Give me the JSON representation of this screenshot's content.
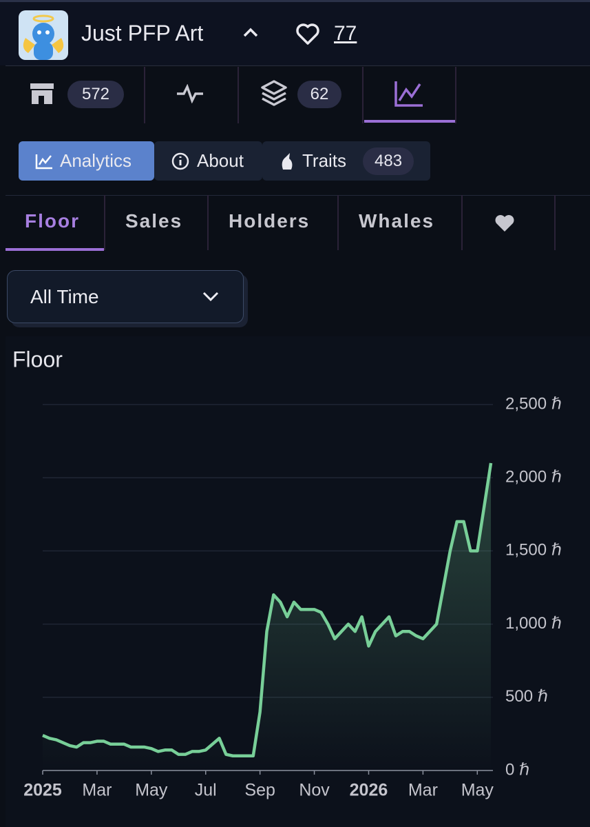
{
  "header": {
    "title": "Just PFP Art",
    "likes": 77
  },
  "nav": {
    "listings": 572,
    "collections": 62
  },
  "buttons": {
    "analytics": "Analytics",
    "about": "About",
    "traits": "Traits",
    "traits_count": 483
  },
  "subtabs": [
    "Floor",
    "Sales",
    "Holders",
    "Whales"
  ],
  "dropdown": "All Time",
  "chart_data": {
    "type": "line",
    "title": "Floor",
    "categories": [
      "2025",
      null,
      null,
      null,
      null,
      null,
      null,
      null,
      "Mar",
      null,
      null,
      null,
      null,
      null,
      null,
      null,
      "May",
      null,
      null,
      null,
      null,
      null,
      null,
      null,
      "Jul",
      null,
      null,
      null,
      null,
      null,
      null,
      null,
      "Sep",
      null,
      null,
      null,
      null,
      null,
      null,
      null,
      "Nov",
      null,
      null,
      null,
      null,
      null,
      null,
      null,
      "2026",
      null,
      null,
      null,
      null,
      null,
      null,
      null,
      "Mar",
      null,
      null,
      null,
      null,
      null,
      null,
      null,
      "May",
      null,
      null
    ],
    "series": [
      {
        "name": "Floor",
        "color": "#78cf98",
        "values": [
          240,
          220,
          210,
          190,
          170,
          160,
          190,
          190,
          200,
          200,
          180,
          180,
          180,
          160,
          160,
          160,
          150,
          130,
          140,
          140,
          110,
          110,
          130,
          130,
          140,
          180,
          220,
          110,
          100,
          100,
          100,
          100,
          400,
          950,
          1200,
          1150,
          1050,
          1150,
          1100,
          1100,
          1100,
          1080,
          1000,
          900,
          950,
          1000,
          950,
          1050,
          850,
          950,
          1000,
          1050,
          920,
          950,
          950,
          920,
          900,
          950,
          1000,
          1250,
          1500,
          1700,
          1700,
          1500,
          1500,
          1800,
          2100
        ]
      }
    ],
    "ylim": [
      0,
      2500
    ],
    "yticks": [
      {
        "value": 0,
        "label": "0 ℏ"
      },
      {
        "value": 500,
        "label": "500 ℏ"
      },
      {
        "value": 1000,
        "label": "1,000 ℏ"
      },
      {
        "value": 1500,
        "label": "1,500 ℏ"
      },
      {
        "value": 2000,
        "label": "2,000 ℏ"
      },
      {
        "value": 2500,
        "label": "2,500 ℏ"
      }
    ],
    "grid": true
  }
}
